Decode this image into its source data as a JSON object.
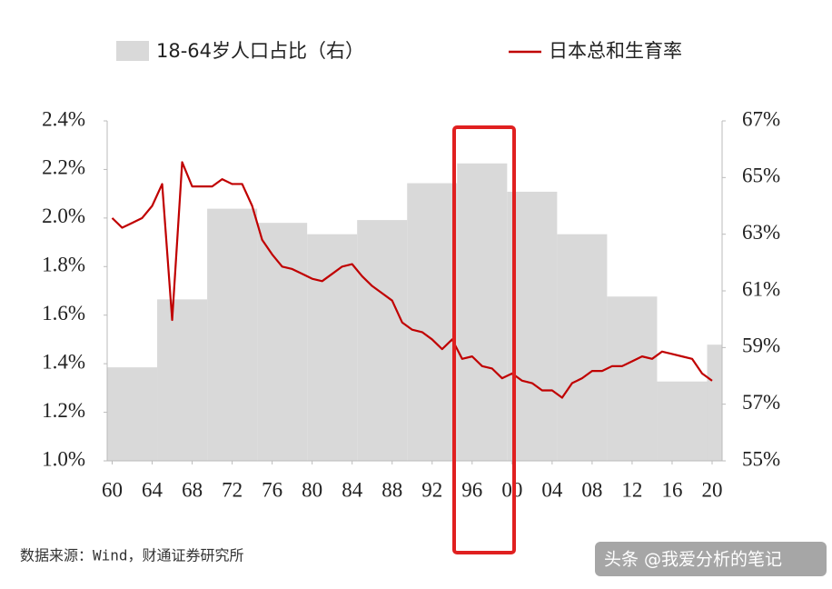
{
  "chart_data": {
    "type": "combo",
    "x": [
      1960,
      1961,
      1962,
      1963,
      1964,
      1965,
      1966,
      1967,
      1968,
      1969,
      1970,
      1971,
      1972,
      1973,
      1974,
      1975,
      1976,
      1977,
      1978,
      1979,
      1980,
      1981,
      1982,
      1983,
      1984,
      1985,
      1986,
      1987,
      1988,
      1989,
      1990,
      1991,
      1992,
      1993,
      1994,
      1995,
      1996,
      1997,
      1998,
      1999,
      2000,
      2001,
      2002,
      2003,
      2004,
      2005,
      2006,
      2007,
      2008,
      2009,
      2010,
      2011,
      2012,
      2013,
      2014,
      2015,
      2016,
      2017,
      2018,
      2019,
      2020
    ],
    "series": [
      {
        "name": "18-64岁人口占比（右）",
        "type": "bar",
        "axis": "y2",
        "color": "#d9d9d9",
        "x": [
          1960,
          1965,
          1970,
          1975,
          1980,
          1985,
          1990,
          1995,
          2000,
          2005,
          2010,
          2015,
          2020
        ],
        "values": [
          58.3,
          60.7,
          63.9,
          63.4,
          63.0,
          63.5,
          64.8,
          65.5,
          64.5,
          63.0,
          60.8,
          57.8,
          59.1
        ]
      },
      {
        "name": "日本总和生育率",
        "type": "line",
        "color": "#c00000",
        "values": [
          2.0,
          1.96,
          1.98,
          2.0,
          2.05,
          2.14,
          1.58,
          2.23,
          2.13,
          2.13,
          2.13,
          2.16,
          2.14,
          2.14,
          2.05,
          1.91,
          1.85,
          1.8,
          1.79,
          1.77,
          1.75,
          1.74,
          1.77,
          1.8,
          1.81,
          1.76,
          1.72,
          1.69,
          1.66,
          1.57,
          1.54,
          1.53,
          1.5,
          1.46,
          1.5,
          1.42,
          1.43,
          1.39,
          1.38,
          1.34,
          1.36,
          1.33,
          1.32,
          1.29,
          1.29,
          1.26,
          1.32,
          1.34,
          1.37,
          1.37,
          1.39,
          1.39,
          1.41,
          1.43,
          1.42,
          1.45,
          1.44,
          1.43,
          1.42,
          1.36,
          1.33
        ]
      }
    ],
    "xlim": [
      1959.5,
      2021
    ],
    "xticks": [
      {
        "value": 1960,
        "label": "60"
      },
      {
        "value": 1964,
        "label": "64"
      },
      {
        "value": 1968,
        "label": "68"
      },
      {
        "value": 1972,
        "label": "72"
      },
      {
        "value": 1976,
        "label": "76"
      },
      {
        "value": 1980,
        "label": "80"
      },
      {
        "value": 1984,
        "label": "84"
      },
      {
        "value": 1988,
        "label": "88"
      },
      {
        "value": 1992,
        "label": "92"
      },
      {
        "value": 1996,
        "label": "96"
      },
      {
        "value": 2000,
        "label": "00"
      },
      {
        "value": 2004,
        "label": "04"
      },
      {
        "value": 2008,
        "label": "08"
      },
      {
        "value": 2012,
        "label": "12"
      },
      {
        "value": 2016,
        "label": "16"
      },
      {
        "value": 2020,
        "label": "20"
      }
    ],
    "ylim": [
      1.0,
      2.4
    ],
    "yticks": [
      {
        "value": 1.0,
        "label": "1.0%"
      },
      {
        "value": 1.2,
        "label": "1.2%"
      },
      {
        "value": 1.4,
        "label": "1.4%"
      },
      {
        "value": 1.6,
        "label": "1.6%"
      },
      {
        "value": 1.8,
        "label": "1.8%"
      },
      {
        "value": 2.0,
        "label": "2.0%"
      },
      {
        "value": 2.2,
        "label": "2.2%"
      },
      {
        "value": 2.4,
        "label": "2.4%"
      }
    ],
    "y2lim": [
      55,
      67
    ],
    "y2ticks": [
      {
        "value": 55,
        "label": "55%"
      },
      {
        "value": 57,
        "label": "57%"
      },
      {
        "value": 59,
        "label": "59%"
      },
      {
        "value": 61,
        "label": "61%"
      },
      {
        "value": 63,
        "label": "63%"
      },
      {
        "value": 65,
        "label": "65%"
      },
      {
        "value": 67,
        "label": "67%"
      }
    ],
    "source": "数据来源：Wind，财通证券研究所",
    "watermark": "头条 @我爱分析的笔记"
  }
}
